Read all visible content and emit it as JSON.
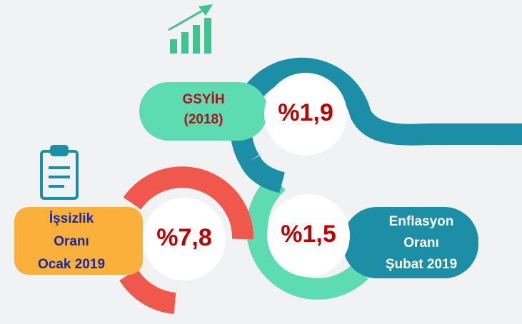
{
  "gdp": {
    "label": [
      "GSYİH",
      "(2018)"
    ],
    "value": "%1,9"
  },
  "unemployment": {
    "label": [
      "İşsizlik",
      "Oranı",
      "Ocak 2019"
    ],
    "value": "%7,8"
  },
  "inflation": {
    "label": [
      "Enflasyon",
      "Oranı",
      "Şubat 2019"
    ],
    "value": "%1,5"
  }
}
